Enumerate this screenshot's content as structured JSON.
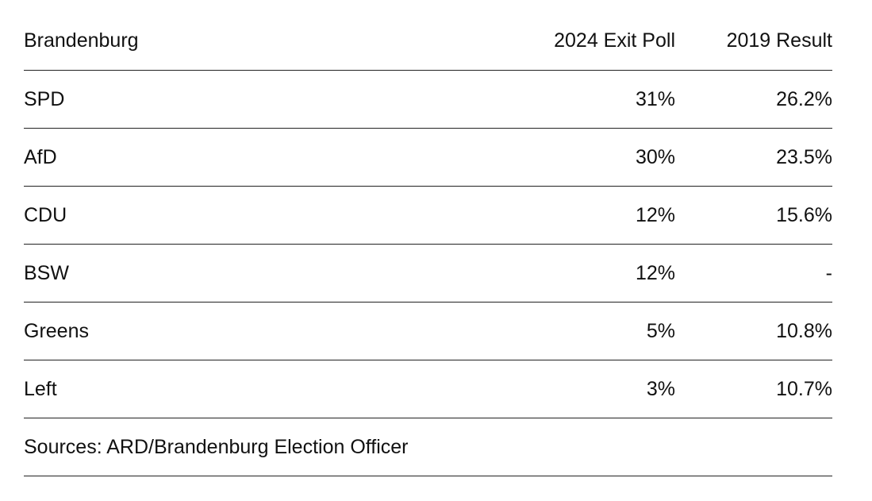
{
  "chart_data": {
    "type": "table",
    "columns": [
      "Brandenburg",
      "2024 Exit Poll",
      "2019 Result"
    ],
    "rows": [
      {
        "party": "SPD",
        "exit_poll_2024": "31%",
        "result_2019": "26.2%"
      },
      {
        "party": "AfD",
        "exit_poll_2024": "30%",
        "result_2019": "23.5%"
      },
      {
        "party": "CDU",
        "exit_poll_2024": "12%",
        "result_2019": "15.6%"
      },
      {
        "party": "BSW",
        "exit_poll_2024": "12%",
        "result_2019": "-"
      },
      {
        "party": "Greens",
        "exit_poll_2024": "5%",
        "result_2019": "10.8%"
      },
      {
        "party": "Left",
        "exit_poll_2024": "3%",
        "result_2019": "10.7%"
      }
    ],
    "source": "Sources: ARD/Brandenburg Election Officer"
  }
}
